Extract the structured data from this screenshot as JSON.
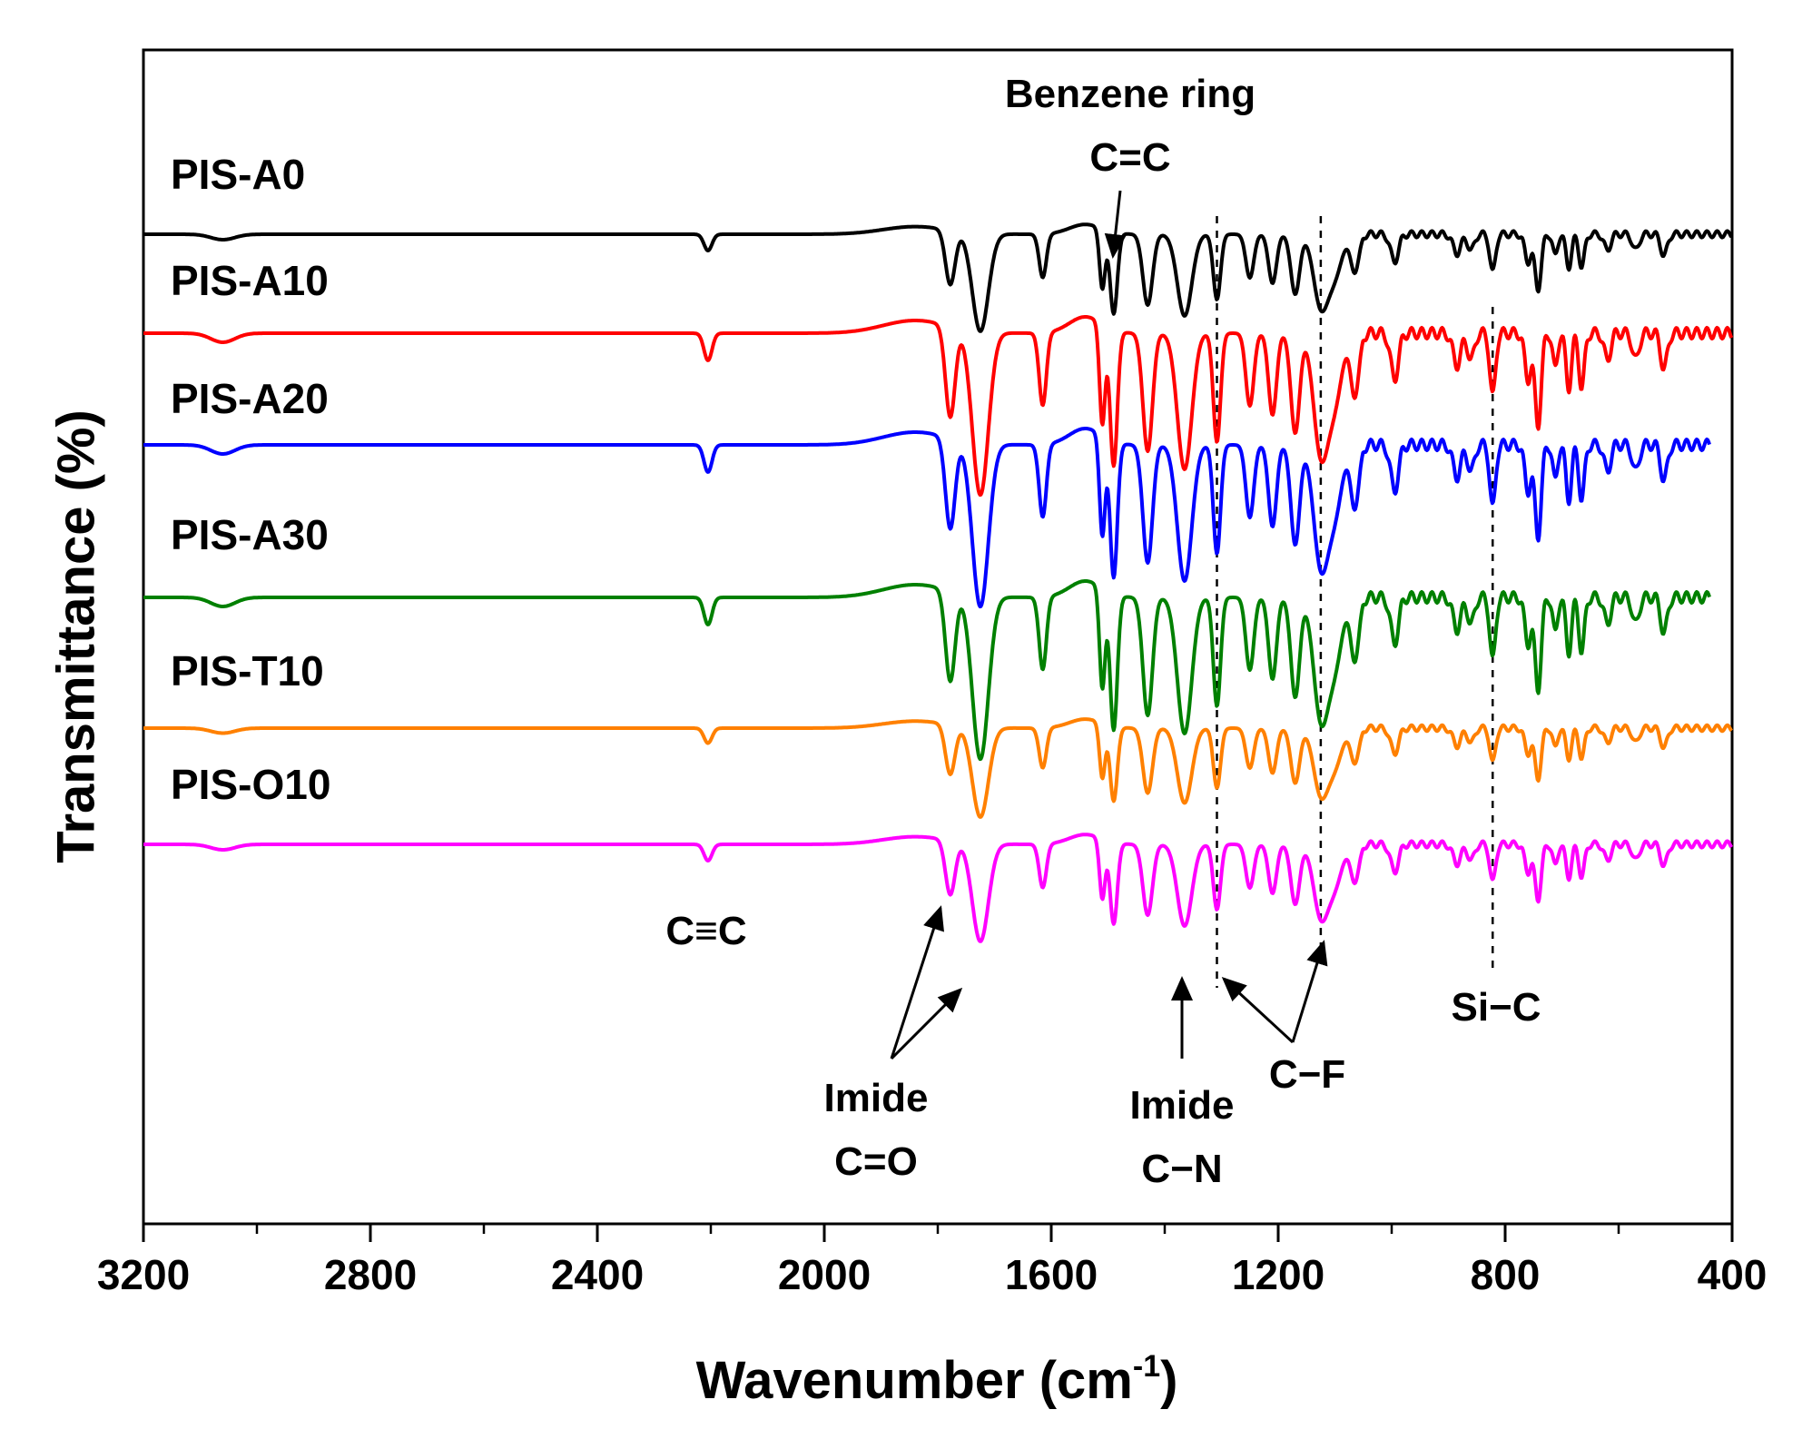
{
  "chart_data": {
    "type": "line",
    "title": "",
    "xlabel": "Wavenumber (cm",
    "xlabel_sup": "-1",
    "xlabel_close": ")",
    "ylabel": "Transmittance (%)",
    "xlim": [
      3200,
      400
    ],
    "x_ticks": [
      3200,
      2800,
      2400,
      2000,
      1600,
      1200,
      800,
      400
    ],
    "x_tick_labels": [
      "3200",
      "2800",
      "2400",
      "2000",
      "1600",
      "1200",
      "800",
      "400"
    ],
    "grid": false,
    "y_ticks_shown": false,
    "band_positions": [
      1308,
      1125,
      822
    ],
    "series": [
      {
        "name": "PIS-A0",
        "color": "#000000",
        "scale": 0.6,
        "x_end": 400
      },
      {
        "name": "PIS-A10",
        "color": "#ff0000",
        "scale": 1.0,
        "x_end": 400
      },
      {
        "name": "PIS-A20",
        "color": "#0000ff",
        "scale": 1.0,
        "x_end": 440
      },
      {
        "name": "PIS-A30",
        "color": "#008000",
        "scale": 1.0,
        "x_end": 440
      },
      {
        "name": "PIS-T10",
        "color": "#ff8000",
        "scale": 0.55,
        "x_end": 400
      },
      {
        "name": "PIS-O10",
        "color": "#ff00ff",
        "scale": 0.6,
        "x_end": 400
      }
    ],
    "peaks": [
      {
        "pos": 3060,
        "depth": 10,
        "width": 30
      },
      {
        "pos": 2205,
        "depth": 30,
        "width": 10
      },
      {
        "pos": 1778,
        "depth": 100,
        "width": 12
      },
      {
        "pos": 1725,
        "depth": 180,
        "width": 20
      },
      {
        "pos": 1615,
        "depth": 80,
        "width": 9
      },
      {
        "pos": 1510,
        "depth": 110,
        "width": 7
      },
      {
        "pos": 1490,
        "depth": 150,
        "width": 9
      },
      {
        "pos": 1430,
        "depth": 130,
        "width": 12
      },
      {
        "pos": 1365,
        "depth": 150,
        "width": 18
      },
      {
        "pos": 1308,
        "depth": 120,
        "width": 9
      },
      {
        "pos": 1250,
        "depth": 80,
        "width": 10
      },
      {
        "pos": 1210,
        "depth": 90,
        "width": 10
      },
      {
        "pos": 1170,
        "depth": 110,
        "width": 11
      },
      {
        "pos": 1125,
        "depth": 130,
        "width": 18
      },
      {
        "pos": 1100,
        "depth": 70,
        "width": 18
      },
      {
        "pos": 1065,
        "depth": 70,
        "width": 10
      },
      {
        "pos": 995,
        "depth": 50,
        "width": 10
      },
      {
        "pos": 885,
        "depth": 35,
        "width": 10
      },
      {
        "pos": 860,
        "depth": 30,
        "width": 8
      },
      {
        "pos": 822,
        "depth": 70,
        "width": 7
      },
      {
        "pos": 760,
        "depth": 50,
        "width": 8
      },
      {
        "pos": 742,
        "depth": 100,
        "width": 8
      },
      {
        "pos": 712,
        "depth": 40,
        "width": 6
      },
      {
        "pos": 688,
        "depth": 60,
        "width": 7
      },
      {
        "pos": 665,
        "depth": 60,
        "width": 7
      },
      {
        "pos": 620,
        "depth": 30,
        "width": 8
      },
      {
        "pos": 570,
        "depth": 30,
        "width": 8
      },
      {
        "pos": 520,
        "depth": 40,
        "width": 8
      }
    ],
    "annotations": [
      {
        "name": "annot-benzene-ring",
        "lines": [
          "Benzene ring",
          "C=C"
        ]
      },
      {
        "name": "annot-ctc",
        "lines": [
          "C≡C"
        ]
      },
      {
        "name": "annot-imide-co",
        "lines": [
          "Imide",
          "C=O"
        ]
      },
      {
        "name": "annot-imide-cn",
        "lines": [
          "Imide",
          "C−N"
        ]
      },
      {
        "name": "annot-cf",
        "lines": [
          "C−F"
        ]
      },
      {
        "name": "annot-sic",
        "lines": [
          "Si−C"
        ]
      }
    ]
  }
}
